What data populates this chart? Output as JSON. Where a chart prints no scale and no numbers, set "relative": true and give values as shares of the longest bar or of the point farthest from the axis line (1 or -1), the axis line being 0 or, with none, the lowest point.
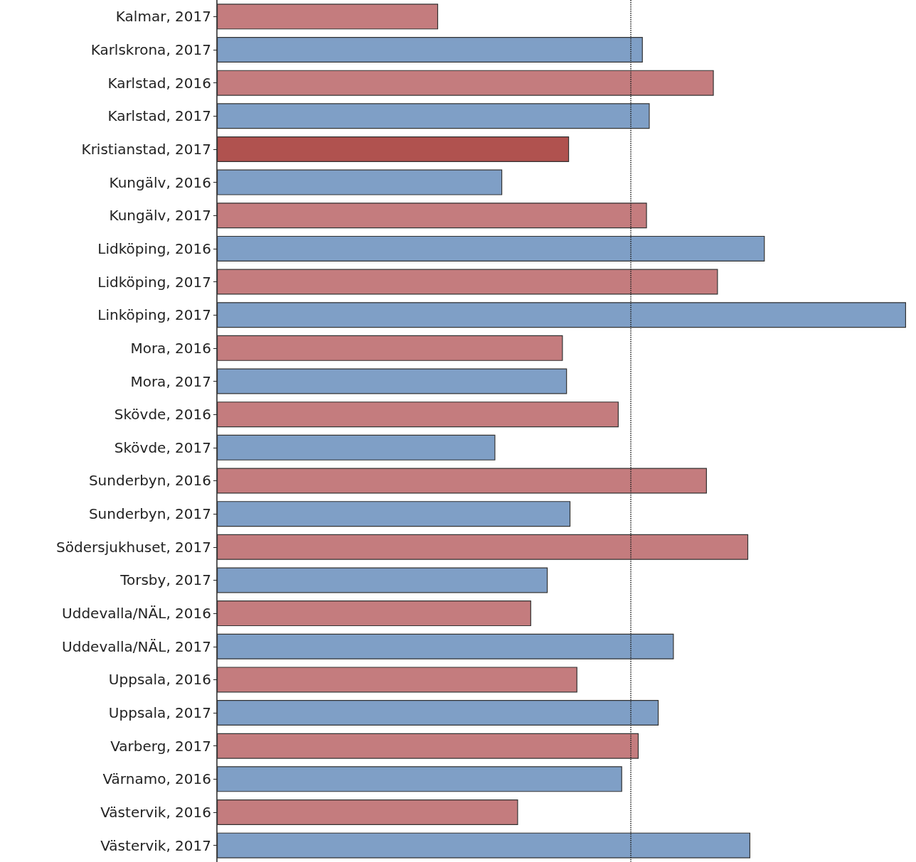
{
  "chart_data": {
    "type": "bar",
    "orientation": "horizontal",
    "relative": true,
    "categories": [
      "Kalmar, 2017",
      "Karlskrona, 2017",
      "Karlstad, 2016",
      "Karlstad, 2017",
      "Kristianstad, 2017",
      "Kungälv, 2016",
      "Kungälv, 2017",
      "Lidköping, 2016",
      "Lidköping, 2017",
      "Linköping, 2017",
      "Mora, 2016",
      "Mora, 2017",
      "Skövde, 2016",
      "Skövde, 2017",
      "Sunderbyn, 2016",
      "Sunderbyn, 2017",
      "Södersjukhuset, 2017",
      "Torsby, 2017",
      "Uddevalla/NÄL, 2016",
      "Uddevalla/NÄL, 2017",
      "Uppsala, 2016",
      "Uppsala, 2017",
      "Varberg, 2017",
      "Värnamo, 2016",
      "Västervik, 2016",
      "Västervik, 2017"
    ],
    "values": [
      0.321,
      0.618,
      0.721,
      0.628,
      0.511,
      0.414,
      0.624,
      0.795,
      0.727,
      1,
      0.502,
      0.508,
      0.583,
      0.404,
      0.711,
      0.513,
      0.771,
      0.48,
      0.456,
      0.663,
      0.523,
      0.641,
      0.612,
      0.588,
      0.437,
      0.774
    ],
    "colors": [
      "#c47c7e",
      "#7f9fc6",
      "#c47c7e",
      "#7f9fc6",
      "#b0524f",
      "#7f9fc6",
      "#c47c7e",
      "#7f9fc6",
      "#c47c7e",
      "#7f9fc6",
      "#c47c7e",
      "#7f9fc6",
      "#c47c7e",
      "#7f9fc6",
      "#c47c7e",
      "#7f9fc6",
      "#c47c7e",
      "#7f9fc6",
      "#c47c7e",
      "#7f9fc6",
      "#c47c7e",
      "#7f9fc6",
      "#c47c7e",
      "#7f9fc6",
      "#c47c7e",
      "#7f9fc6"
    ],
    "ref_lines": [
      {
        "axis": "x",
        "value": 0.601,
        "line_style": "dotted",
        "color": "#222222"
      }
    ]
  }
}
